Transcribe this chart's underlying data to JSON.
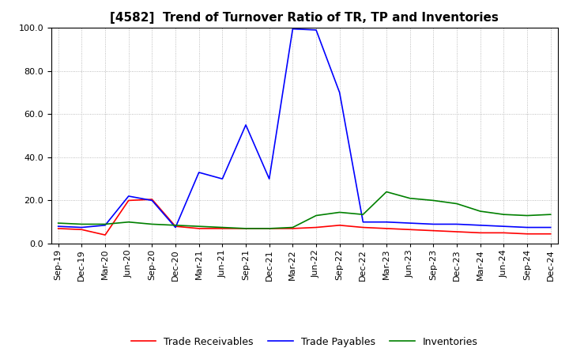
{
  "title": "[4582]  Trend of Turnover Ratio of TR, TP and Inventories",
  "xlabels": [
    "Sep-19",
    "Dec-19",
    "Mar-20",
    "Jun-20",
    "Sep-20",
    "Dec-20",
    "Mar-21",
    "Jun-21",
    "Sep-21",
    "Dec-21",
    "Mar-22",
    "Jun-22",
    "Sep-22",
    "Dec-22",
    "Mar-23",
    "Jun-23",
    "Sep-23",
    "Dec-23",
    "Mar-24",
    "Jun-24",
    "Sep-24",
    "Dec-24"
  ],
  "ylim": [
    0.0,
    100.0
  ],
  "yticks": [
    0.0,
    20.0,
    40.0,
    60.0,
    80.0,
    100.0
  ],
  "trade_receivables": [
    7.0,
    6.5,
    4.0,
    20.0,
    20.5,
    8.0,
    7.0,
    7.0,
    7.0,
    7.0,
    7.0,
    7.5,
    8.5,
    7.5,
    7.0,
    6.5,
    6.0,
    5.5,
    5.0,
    5.0,
    4.5,
    4.5
  ],
  "trade_payables": [
    8.0,
    7.5,
    8.5,
    22.0,
    20.0,
    7.5,
    33.0,
    30.0,
    55.0,
    30.0,
    99.5,
    99.0,
    70.0,
    10.0,
    10.0,
    9.5,
    9.0,
    9.0,
    8.5,
    8.0,
    7.5,
    7.5
  ],
  "inventories": [
    9.5,
    9.0,
    9.0,
    10.0,
    9.0,
    8.5,
    8.0,
    7.5,
    7.0,
    7.0,
    7.5,
    13.0,
    14.5,
    13.5,
    24.0,
    21.0,
    20.0,
    18.5,
    15.0,
    13.5,
    13.0,
    13.5
  ],
  "tr_color": "#ff0000",
  "tp_color": "#0000ff",
  "inv_color": "#008000",
  "background_color": "#ffffff",
  "grid_color": "#aaaaaa",
  "title_fontsize": 11,
  "legend_fontsize": 9,
  "tick_fontsize": 8
}
